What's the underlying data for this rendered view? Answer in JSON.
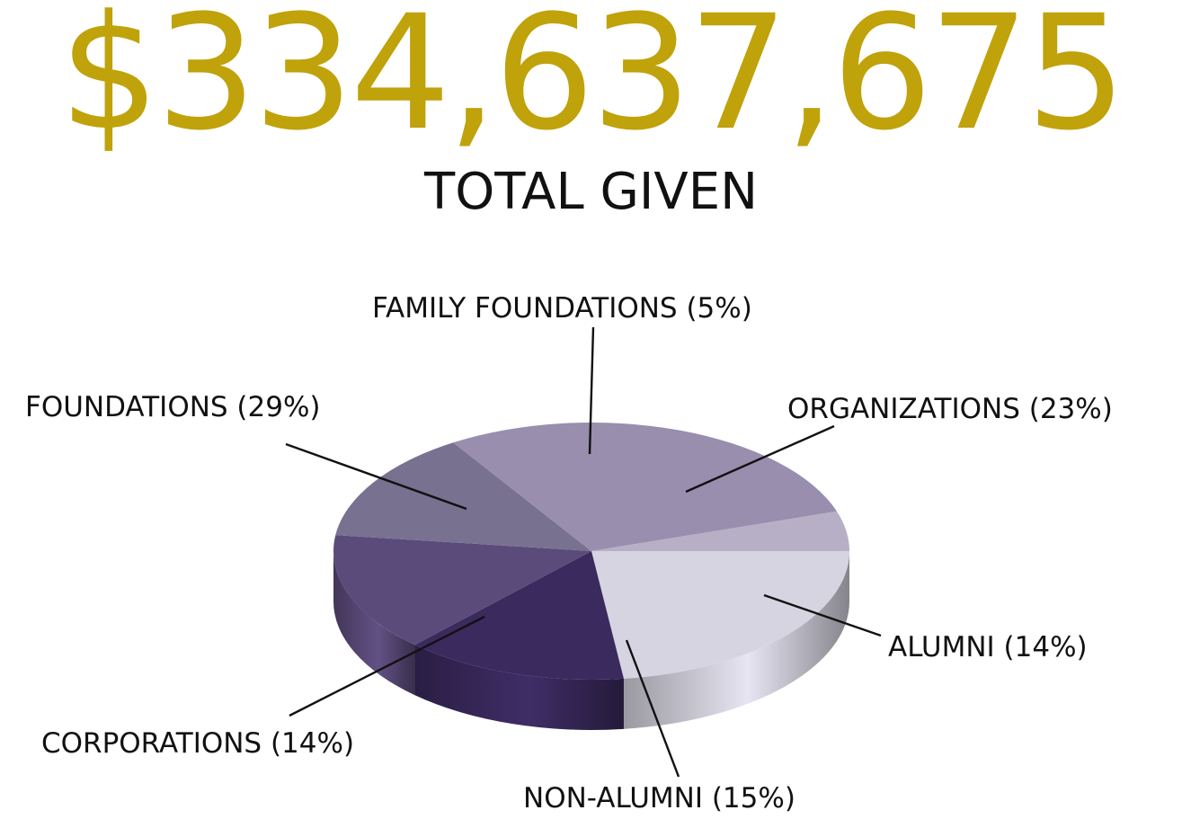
{
  "headline": {
    "amount": "$334,637,675",
    "caption": "TOTAL GIVEN"
  },
  "colors": {
    "amount": "#c0a20a",
    "caption": "#111111"
  },
  "chart_data": {
    "type": "pie",
    "title": "",
    "slices": [
      {
        "name": "ORGANIZATIONS",
        "label": "ORGANIZATIONS (23%)",
        "value": 23,
        "color": "#d6d4e0"
      },
      {
        "name": "ALUMNI",
        "label": "ALUMNI (14%)",
        "value": 14,
        "color": "#3a2a5e"
      },
      {
        "name": "NON-ALUMNI",
        "label": "NON-ALUMNI (15%)",
        "value": 15,
        "color": "#5b4b7b"
      },
      {
        "name": "CORPORATIONS",
        "label": "CORPORATIONS (14%)",
        "value": 14,
        "color": "#797190"
      },
      {
        "name": "FOUNDATIONS",
        "label": "FOUNDATIONS (29%)",
        "value": 29,
        "color": "#998ead"
      },
      {
        "name": "FAMILY FOUNDATIONS",
        "label": "FAMILY FOUNDATIONS (5%)",
        "value": 5,
        "color": "#b7afc5"
      }
    ]
  }
}
